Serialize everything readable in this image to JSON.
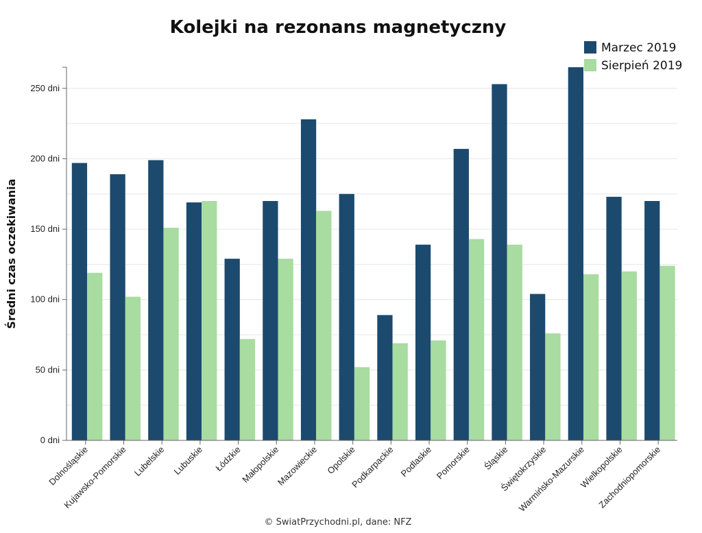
{
  "chart_data": {
    "type": "bar",
    "title": "Kolejki na rezonans magnetyczny",
    "ylabel": "Średni czas oczekiwania",
    "xlabel": "",
    "ylim": [
      0,
      265
    ],
    "ytick_values": [
      0,
      50,
      100,
      150,
      200,
      250
    ],
    "ytick_labels": [
      "0 dni",
      "50 dni",
      "100 dni",
      "150 dni",
      "200 dni",
      "250 dni"
    ],
    "grid": true,
    "legend_position": "top-right",
    "categories": [
      "Dolnośląskie",
      "Kujawsko-Pomorskie",
      "Lubelskie",
      "Lubuskie",
      "Łódzkie",
      "Małopolskie",
      "Mazowieckie",
      "Opolskie",
      "Podkarpackie",
      "Podlaskie",
      "Pomorskie",
      "Śląskie",
      "Świętokrzyskie",
      "Warmińsko-Mazurskie",
      "Wielkopolskie",
      "Zachodniopomorskie"
    ],
    "series": [
      {
        "name": "Marzec 2019",
        "color": "#1b4a6e",
        "values": [
          197,
          189,
          199,
          169,
          129,
          170,
          228,
          175,
          89,
          139,
          207,
          253,
          104,
          265,
          173,
          170
        ]
      },
      {
        "name": "Sierpień 2019",
        "color": "#a8dca0",
        "values": [
          119,
          102,
          151,
          170,
          72,
          129,
          163,
          52,
          69,
          71,
          143,
          139,
          76,
          118,
          120,
          124
        ]
      }
    ],
    "source": "© SwiatPrzychodni.pl, dane: NFZ"
  }
}
